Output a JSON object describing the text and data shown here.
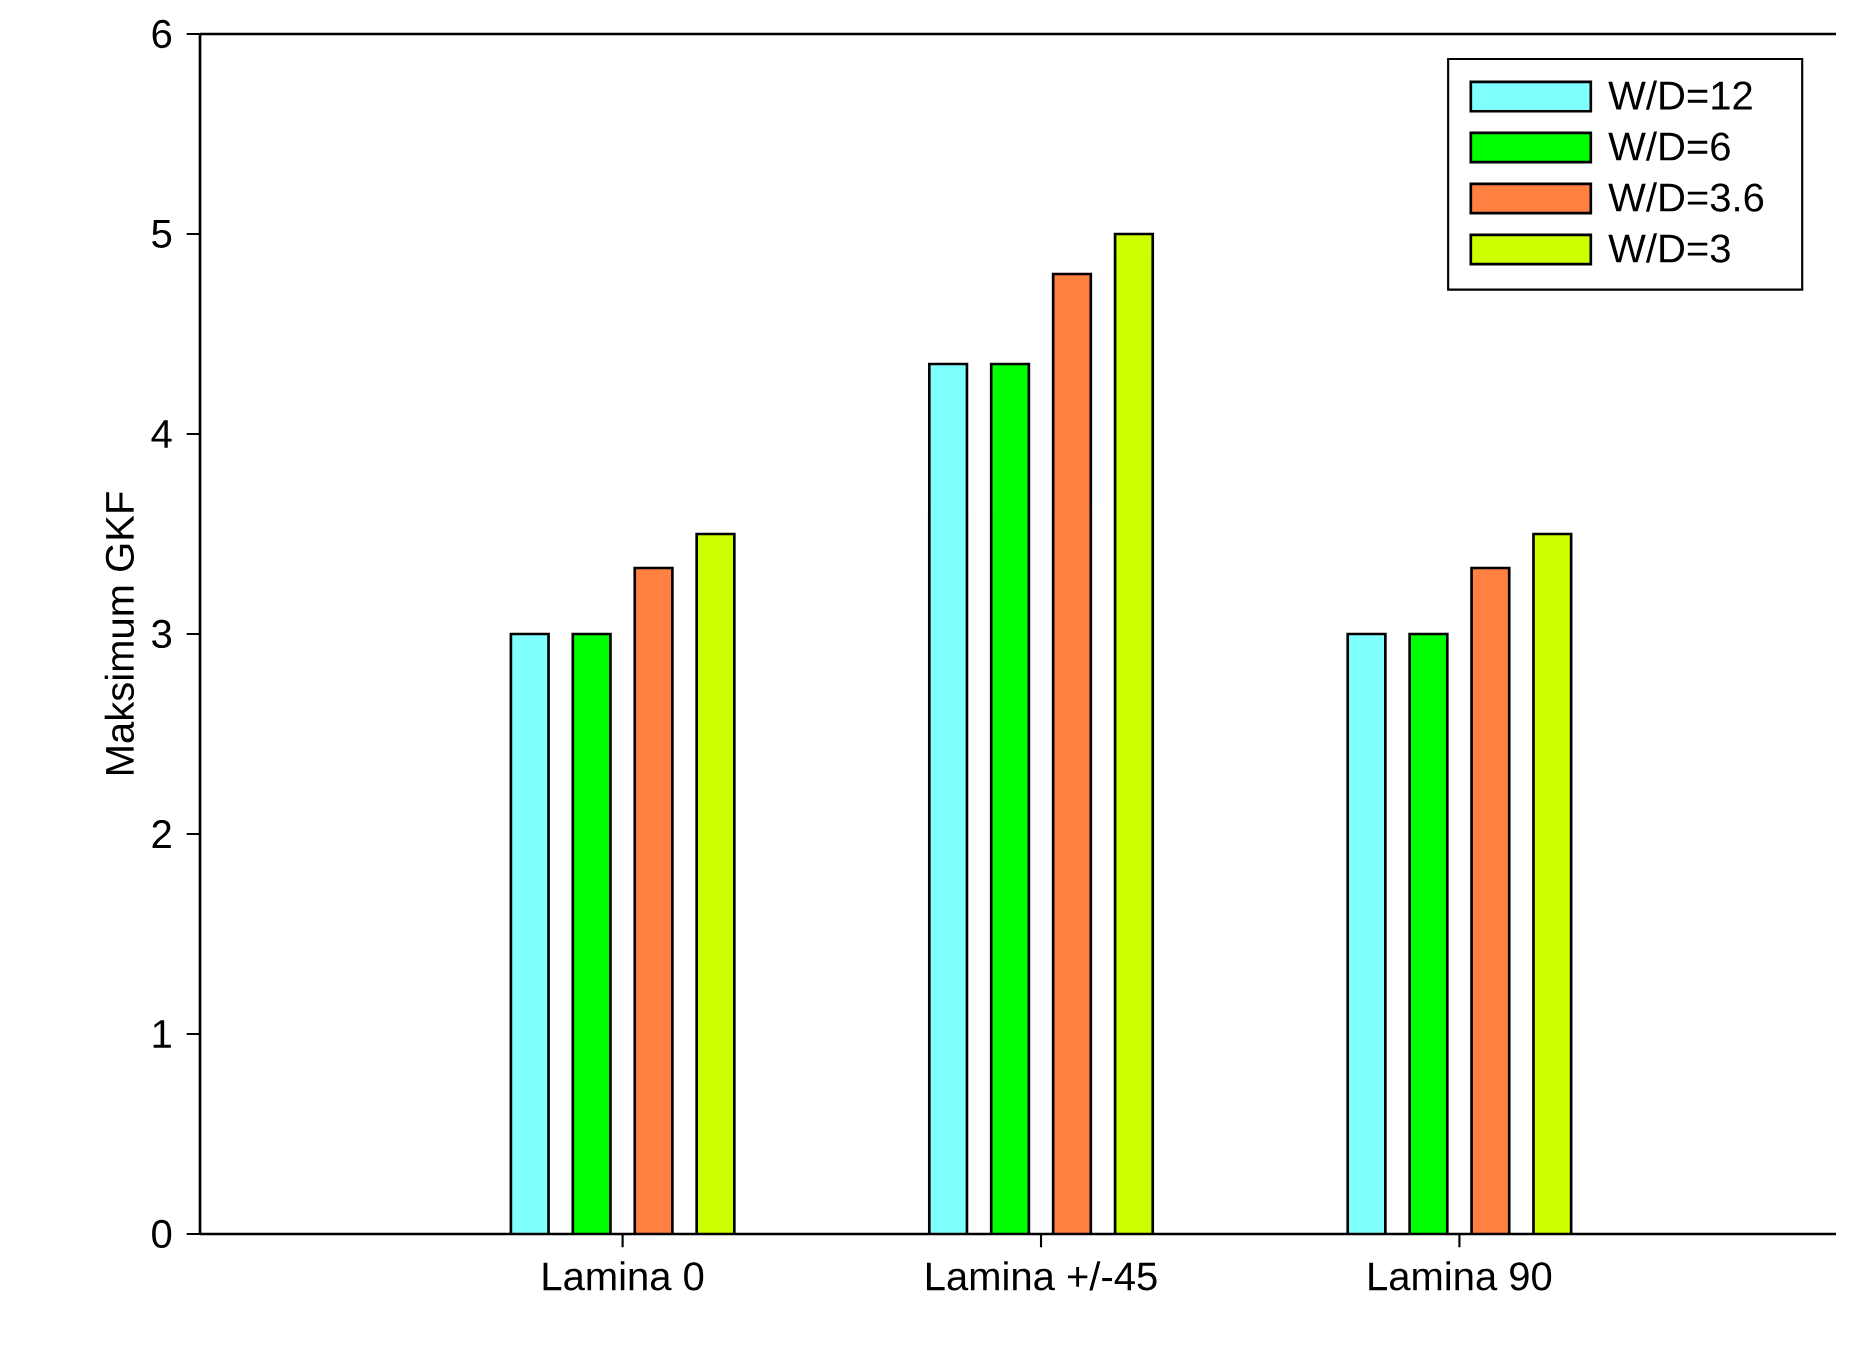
{
  "chart_data": {
    "type": "bar",
    "ylabel": "Maksimum GKF",
    "categories": [
      "Lamina 0",
      "Lamina +/-45",
      "Lamina 90"
    ],
    "series": [
      {
        "name": "W/D=12",
        "color": "#80ffff",
        "values": [
          3.0,
          4.35,
          3.0
        ]
      },
      {
        "name": "W/D=6",
        "color": "#00ff00",
        "values": [
          3.0,
          4.35,
          3.0
        ]
      },
      {
        "name": "W/D=3.6",
        "color": "#ff8040",
        "values": [
          3.33,
          4.8,
          3.33
        ]
      },
      {
        "name": "W/D=3",
        "color": "#ccff00",
        "values": [
          3.5,
          5.0,
          3.5
        ]
      }
    ],
    "ylim": [
      0,
      6
    ],
    "yticks": [
      0,
      1,
      2,
      3,
      4,
      5,
      6
    ],
    "grid": false,
    "legend": "top right"
  }
}
